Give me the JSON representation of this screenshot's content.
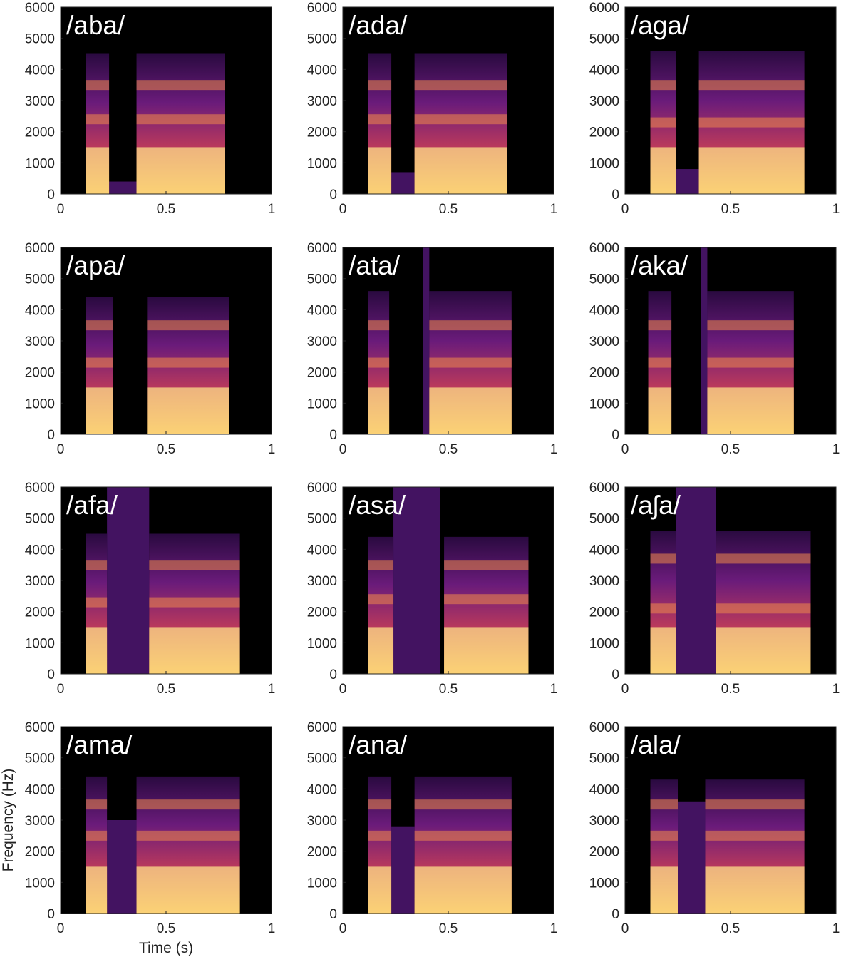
{
  "chart_data": [
    {
      "type": "spectrogram",
      "title": "/aba/",
      "xlim": [
        0,
        1
      ],
      "ylim": [
        0,
        6000
      ],
      "xticks": [
        0,
        0.5,
        1
      ],
      "yticks": [
        0,
        1000,
        2000,
        3000,
        4000,
        5000,
        6000
      ],
      "vowels": [
        [
          0.12,
          0.23
        ],
        [
          0.36,
          0.78
        ]
      ],
      "vowel_top": 4500,
      "formants": [
        250,
        750,
        1250,
        2400,
        3500
      ],
      "consonant": {
        "x": [
          0.23,
          0.36
        ],
        "top": 400
      }
    },
    {
      "type": "spectrogram",
      "title": "/ada/",
      "xlim": [
        0,
        1
      ],
      "ylim": [
        0,
        6000
      ],
      "xticks": [
        0,
        0.5,
        1
      ],
      "yticks": [
        0,
        1000,
        2000,
        3000,
        4000,
        5000,
        6000
      ],
      "vowels": [
        [
          0.12,
          0.23
        ],
        [
          0.34,
          0.78
        ]
      ],
      "vowel_top": 4500,
      "formants": [
        250,
        750,
        1250,
        2400,
        3500
      ],
      "consonant": {
        "x": [
          0.23,
          0.34
        ],
        "top": 700
      }
    },
    {
      "type": "spectrogram",
      "title": "/aga/",
      "xlim": [
        0,
        1
      ],
      "ylim": [
        0,
        6000
      ],
      "xticks": [
        0,
        0.5,
        1
      ],
      "yticks": [
        0,
        1000,
        2000,
        3000,
        4000,
        5000,
        6000
      ],
      "vowels": [
        [
          0.12,
          0.24
        ],
        [
          0.35,
          0.85
        ]
      ],
      "vowel_top": 4600,
      "formants": [
        250,
        750,
        1250,
        2300,
        3500
      ],
      "consonant": {
        "x": [
          0.24,
          0.35
        ],
        "top": 800
      }
    },
    {
      "type": "spectrogram",
      "title": "/apa/",
      "xlim": [
        0,
        1
      ],
      "ylim": [
        0,
        6000
      ],
      "xticks": [
        0,
        0.5,
        1
      ],
      "yticks": [
        0,
        1000,
        2000,
        3000,
        4000,
        5000,
        6000
      ],
      "vowels": [
        [
          0.12,
          0.25
        ],
        [
          0.41,
          0.8
        ]
      ],
      "vowel_top": 4400,
      "formants": [
        250,
        750,
        1250,
        2300,
        3500
      ]
    },
    {
      "type": "spectrogram",
      "title": "/ata/",
      "xlim": [
        0,
        1
      ],
      "ylim": [
        0,
        6000
      ],
      "xticks": [
        0,
        0.5,
        1
      ],
      "yticks": [
        0,
        1000,
        2000,
        3000,
        4000,
        5000,
        6000
      ],
      "vowels": [
        [
          0.12,
          0.22
        ],
        [
          0.41,
          0.8
        ]
      ],
      "vowel_top": 4600,
      "formants": [
        250,
        750,
        1250,
        2300,
        3500
      ],
      "consonant": {
        "x": [
          0.38,
          0.41
        ],
        "top": 6000
      }
    },
    {
      "type": "spectrogram",
      "title": "/aka/",
      "xlim": [
        0,
        1
      ],
      "ylim": [
        0,
        6000
      ],
      "xticks": [
        0,
        0.5,
        1
      ],
      "yticks": [
        0,
        1000,
        2000,
        3000,
        4000,
        5000,
        6000
      ],
      "vowels": [
        [
          0.11,
          0.22
        ],
        [
          0.39,
          0.8
        ]
      ],
      "vowel_top": 4600,
      "formants": [
        250,
        750,
        1250,
        2300,
        3500
      ],
      "consonant": {
        "x": [
          0.36,
          0.39
        ],
        "top": 6000
      }
    },
    {
      "type": "spectrogram",
      "title": "/afa/",
      "xlim": [
        0,
        1
      ],
      "ylim": [
        0,
        6000
      ],
      "xticks": [
        0,
        0.5,
        1
      ],
      "yticks": [
        0,
        1000,
        2000,
        3000,
        4000,
        5000,
        6000
      ],
      "vowels": [
        [
          0.12,
          0.22
        ],
        [
          0.42,
          0.85
        ]
      ],
      "vowel_top": 4500,
      "formants": [
        250,
        750,
        1250,
        2300,
        3500
      ],
      "consonant": {
        "x": [
          0.22,
          0.42
        ],
        "top": 6000
      }
    },
    {
      "type": "spectrogram",
      "title": "/asa/",
      "xlim": [
        0,
        1
      ],
      "ylim": [
        0,
        6000
      ],
      "xticks": [
        0,
        0.5,
        1
      ],
      "yticks": [
        0,
        1000,
        2000,
        3000,
        4000,
        5000,
        6000
      ],
      "vowels": [
        [
          0.12,
          0.24
        ],
        [
          0.48,
          0.88
        ]
      ],
      "vowel_top": 4400,
      "formants": [
        250,
        750,
        1250,
        2400,
        3500
      ],
      "consonant": {
        "x": [
          0.24,
          0.46
        ],
        "top": 6000
      }
    },
    {
      "type": "spectrogram",
      "title": "/aʃa/",
      "xlim": [
        0,
        1
      ],
      "ylim": [
        0,
        6000
      ],
      "xticks": [
        0,
        0.5,
        1
      ],
      "yticks": [
        0,
        1000,
        2000,
        3000,
        4000,
        5000,
        6000
      ],
      "vowels": [
        [
          0.12,
          0.24
        ],
        [
          0.43,
          0.88
        ]
      ],
      "vowel_top": 4600,
      "formants": [
        250,
        750,
        1250,
        2100,
        3700
      ],
      "consonant": {
        "x": [
          0.24,
          0.43
        ],
        "top": 6000
      }
    },
    {
      "type": "spectrogram",
      "title": "/ama/",
      "xlim": [
        0,
        1
      ],
      "ylim": [
        0,
        6000
      ],
      "xticks": [
        0,
        0.5,
        1
      ],
      "yticks": [
        0,
        1000,
        2000,
        3000,
        4000,
        5000,
        6000
      ],
      "vowels": [
        [
          0.12,
          0.22
        ],
        [
          0.36,
          0.85
        ]
      ],
      "vowel_top": 4400,
      "formants": [
        250,
        750,
        1250,
        2500,
        3500
      ],
      "consonant": {
        "x": [
          0.22,
          0.36
        ],
        "top": 3000
      },
      "xlabel": "Time (s)",
      "ylabel": "Frequency (Hz)"
    },
    {
      "type": "spectrogram",
      "title": "/ana/",
      "xlim": [
        0,
        1
      ],
      "ylim": [
        0,
        6000
      ],
      "xticks": [
        0,
        0.5,
        1
      ],
      "yticks": [
        0,
        1000,
        2000,
        3000,
        4000,
        5000,
        6000
      ],
      "vowels": [
        [
          0.12,
          0.23
        ],
        [
          0.34,
          0.8
        ]
      ],
      "vowel_top": 4400,
      "formants": [
        250,
        750,
        1250,
        2500,
        3500
      ],
      "consonant": {
        "x": [
          0.23,
          0.34
        ],
        "top": 2800
      }
    },
    {
      "type": "spectrogram",
      "title": "/ala/",
      "xlim": [
        0,
        1
      ],
      "ylim": [
        0,
        6000
      ],
      "xticks": [
        0,
        0.5,
        1
      ],
      "yticks": [
        0,
        1000,
        2000,
        3000,
        4000,
        5000,
        6000
      ],
      "vowels": [
        [
          0.12,
          0.25
        ],
        [
          0.38,
          0.85
        ]
      ],
      "vowel_top": 4300,
      "formants": [
        250,
        750,
        1250,
        2500,
        3500
      ],
      "consonant": {
        "x": [
          0.25,
          0.38
        ],
        "top": 3600
      }
    }
  ]
}
